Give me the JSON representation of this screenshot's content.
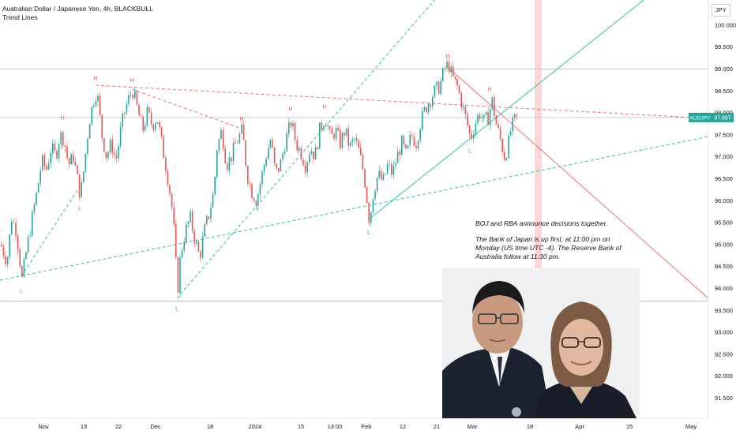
{
  "header": {
    "title": "Australian Dollar / Japanese Yen, 4h, BLACKBULL",
    "indicator": "Trend Lines"
  },
  "currency": "JPY",
  "price_tag": {
    "symbol": "AUDJPY",
    "value": "97.887"
  },
  "annotation": {
    "line1": "BOJ and RBA announce decisions together.",
    "line2": "The Bank of Japan is up first, at 11:00 pm on Monday (US time UTC -4). The Reserve Bank of Australia follow at 11:30 pm."
  },
  "colors": {
    "bull": "#26a69a",
    "bear": "#ef5350",
    "support": "#26c6a0",
    "resistance": "#f26d6d",
    "highlight": "#fcd5d5"
  },
  "chart_data": {
    "type": "candlestick",
    "title": "Australian Dollar / Japanese Yen, 4h, BLACKBULL",
    "ylim": [
      91.0,
      100.5
    ],
    "y_ticks": [
      "100.000",
      "99.500",
      "99.000",
      "98.500",
      "98.000",
      "97.500",
      "97.000",
      "96.500",
      "96.000",
      "95.500",
      "95.000",
      "94.500",
      "94.000",
      "93.500",
      "93.000",
      "92.500",
      "92.000",
      "91.500"
    ],
    "x_ticks": [
      "Nov",
      "13",
      "22",
      "Dec",
      "18",
      "2024",
      "15",
      "13:00",
      "Feb",
      "12",
      "21",
      "Mar",
      "18",
      "Apr",
      "15",
      "May"
    ],
    "last_price": 97.887,
    "horizontal_levels": [
      98.99,
      93.7,
      97.887
    ],
    "swing_points": [
      {
        "t": "L",
        "x": 27,
        "y": 94.12
      },
      {
        "t": "H",
        "x": 79,
        "y": 97.75
      },
      {
        "t": "L",
        "x": 101,
        "y": 96.0
      },
      {
        "t": "H",
        "x": 121,
        "y": 98.65
      },
      {
        "t": "H",
        "x": 167,
        "y": 98.6
      },
      {
        "t": "L",
        "x": 224,
        "y": 93.7
      },
      {
        "t": "H",
        "x": 306,
        "y": 97.72
      },
      {
        "t": "L",
        "x": 326,
        "y": 96.0
      },
      {
        "t": "H",
        "x": 368,
        "y": 97.95
      },
      {
        "t": "H",
        "x": 411,
        "y": 98.0
      },
      {
        "t": "L",
        "x": 467,
        "y": 95.45
      },
      {
        "t": "H",
        "x": 567,
        "y": 99.15
      },
      {
        "t": "L",
        "x": 595,
        "y": 97.3
      },
      {
        "t": "H",
        "x": 620,
        "y": 98.4
      }
    ],
    "path": [
      [
        0,
        95.0
      ],
      [
        8,
        94.6
      ],
      [
        14,
        95.6
      ],
      [
        20,
        95.3
      ],
      [
        27,
        94.2
      ],
      [
        34,
        95.0
      ],
      [
        40,
        95.6
      ],
      [
        46,
        96.2
      ],
      [
        52,
        96.9
      ],
      [
        58,
        96.7
      ],
      [
        64,
        97.2
      ],
      [
        70,
        97.0
      ],
      [
        75,
        97.5
      ],
      [
        80,
        97.4
      ],
      [
        86,
        96.8
      ],
      [
        92,
        97.0
      ],
      [
        98,
        96.4
      ],
      [
        101,
        96.1
      ],
      [
        106,
        96.8
      ],
      [
        112,
        97.8
      ],
      [
        118,
        98.3
      ],
      [
        122,
        98.5
      ],
      [
        128,
        97.5
      ],
      [
        134,
        97.0
      ],
      [
        140,
        97.3
      ],
      [
        146,
        96.9
      ],
      [
        152,
        97.6
      ],
      [
        158,
        98.1
      ],
      [
        164,
        98.4
      ],
      [
        168,
        98.5
      ],
      [
        174,
        98.0
      ],
      [
        180,
        97.6
      ],
      [
        186,
        98.0
      ],
      [
        192,
        97.7
      ],
      [
        198,
        97.9
      ],
      [
        204,
        97.3
      ],
      [
        210,
        96.7
      ],
      [
        216,
        96.0
      ],
      [
        220,
        95.2
      ],
      [
        224,
        93.9
      ],
      [
        228,
        94.8
      ],
      [
        234,
        95.3
      ],
      [
        240,
        95.6
      ],
      [
        246,
        95.1
      ],
      [
        252,
        94.7
      ],
      [
        258,
        95.3
      ],
      [
        264,
        95.7
      ],
      [
        270,
        96.2
      ],
      [
        274,
        97.2
      ],
      [
        280,
        97.6
      ],
      [
        286,
        96.8
      ],
      [
        292,
        97.0
      ],
      [
        298,
        97.3
      ],
      [
        306,
        97.6
      ],
      [
        312,
        96.6
      ],
      [
        318,
        96.2
      ],
      [
        324,
        96.0
      ],
      [
        330,
        96.5
      ],
      [
        336,
        97.0
      ],
      [
        342,
        97.4
      ],
      [
        348,
        96.6
      ],
      [
        354,
        96.8
      ],
      [
        360,
        97.3
      ],
      [
        368,
        97.8
      ],
      [
        374,
        97.3
      ],
      [
        380,
        97.1
      ],
      [
        386,
        96.8
      ],
      [
        392,
        97.2
      ],
      [
        398,
        97.0
      ],
      [
        404,
        97.6
      ],
      [
        411,
        97.9
      ],
      [
        418,
        97.4
      ],
      [
        424,
        97.6
      ],
      [
        430,
        97.3
      ],
      [
        436,
        97.6
      ],
      [
        442,
        97.2
      ],
      [
        448,
        97.4
      ],
      [
        454,
        97.1
      ],
      [
        460,
        96.6
      ],
      [
        464,
        96.0
      ],
      [
        467,
        95.5
      ],
      [
        472,
        96.2
      ],
      [
        478,
        96.6
      ],
      [
        484,
        96.4
      ],
      [
        490,
        96.8
      ],
      [
        496,
        96.6
      ],
      [
        502,
        97.0
      ],
      [
        508,
        97.3
      ],
      [
        514,
        97.0
      ],
      [
        520,
        97.5
      ],
      [
        526,
        97.3
      ],
      [
        532,
        97.8
      ],
      [
        538,
        98.1
      ],
      [
        544,
        98.3
      ],
      [
        550,
        98.5
      ],
      [
        556,
        98.6
      ],
      [
        562,
        99.0
      ],
      [
        567,
        99.1
      ],
      [
        572,
        98.8
      ],
      [
        578,
        98.6
      ],
      [
        584,
        98.2
      ],
      [
        590,
        97.8
      ],
      [
        595,
        97.4
      ],
      [
        600,
        97.7
      ],
      [
        606,
        98.0
      ],
      [
        612,
        97.8
      ],
      [
        618,
        97.9
      ],
      [
        622,
        98.3
      ],
      [
        628,
        97.7
      ],
      [
        634,
        97.3
      ],
      [
        638,
        97.0
      ],
      [
        642,
        97.2
      ],
      [
        646,
        97.6
      ],
      [
        650,
        97.8
      ],
      [
        654,
        97.9
      ]
    ]
  }
}
